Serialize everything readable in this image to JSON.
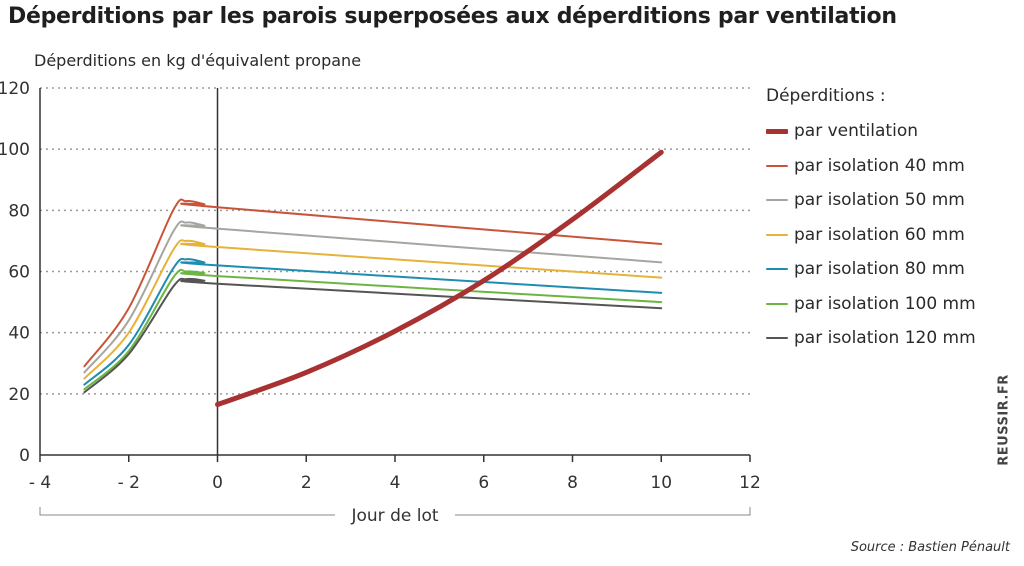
{
  "title": "Déperditions par les parois superposées aux déperditions par ventilation",
  "credit": "REUSSIR.FR",
  "source": "Source : Bastien Pénault",
  "legend_title": "Déperditions :",
  "chart_data": {
    "type": "line",
    "title": "Déperditions par les parois superposées aux déperditions par ventilation",
    "ylabel": "Déperditions en kg d'équivalent propane",
    "xlabel": "Jour de lot",
    "xlim": [
      -4,
      12
    ],
    "ylim": [
      0,
      120
    ],
    "x_ticks": [
      -4,
      -2,
      0,
      2,
      4,
      6,
      8,
      10,
      12
    ],
    "x_tick_labels": [
      "- 4",
      "- 2",
      "0",
      "2",
      "4",
      "6",
      "8",
      "10",
      "12"
    ],
    "y_ticks": [
      0,
      20,
      40,
      60,
      80,
      100,
      120
    ],
    "y_tick_labels": [
      "0",
      "20",
      "40",
      "60",
      "80",
      "100",
      "120"
    ],
    "grid": "horizontal-dotted",
    "vertical_marker_x": 0,
    "legend_position": "right",
    "series": [
      {
        "name": "par ventilation",
        "color": "#a83232",
        "width": 5,
        "points": [
          [
            0,
            16.5
          ],
          [
            2,
            27
          ],
          [
            4,
            40.5
          ],
          [
            6,
            57
          ],
          [
            8,
            77
          ],
          [
            10,
            99
          ]
        ]
      },
      {
        "name": "par isolation 40 mm",
        "color": "#c8553a",
        "width": 2,
        "points": [
          [
            -3,
            29
          ],
          [
            -2,
            48
          ],
          [
            -1,
            80
          ],
          [
            -0.7,
            83
          ],
          [
            -0.3,
            82
          ],
          [
            0,
            81
          ],
          [
            10,
            69
          ]
        ]
      },
      {
        "name": "par isolation 50 mm",
        "color": "#a6a6a0",
        "width": 2,
        "points": [
          [
            -3,
            27
          ],
          [
            -2,
            44
          ],
          [
            -1,
            73
          ],
          [
            -0.7,
            76
          ],
          [
            -0.3,
            75
          ],
          [
            0,
            74
          ],
          [
            10,
            63
          ]
        ]
      },
      {
        "name": "par isolation 60 mm",
        "color": "#e6b23a",
        "width": 2,
        "points": [
          [
            -3,
            25
          ],
          [
            -2,
            40
          ],
          [
            -1,
            67
          ],
          [
            -0.7,
            70
          ],
          [
            -0.3,
            69
          ],
          [
            0,
            68
          ],
          [
            10,
            58
          ]
        ]
      },
      {
        "name": "par isolation 80 mm",
        "color": "#1f8db0",
        "width": 2,
        "points": [
          [
            -3,
            23
          ],
          [
            -2,
            36
          ],
          [
            -1,
            61
          ],
          [
            -0.7,
            64
          ],
          [
            -0.3,
            63
          ],
          [
            0,
            62
          ],
          [
            10,
            53
          ]
        ]
      },
      {
        "name": "par isolation 100 mm",
        "color": "#6db543",
        "width": 2,
        "points": [
          [
            -3,
            21.5
          ],
          [
            -2,
            34
          ],
          [
            -1,
            58
          ],
          [
            -0.7,
            60
          ],
          [
            -0.3,
            59.5
          ],
          [
            0,
            58.5
          ],
          [
            10,
            50
          ]
        ]
      },
      {
        "name": "par isolation 120 mm",
        "color": "#555555",
        "width": 2,
        "points": [
          [
            -3,
            20.5
          ],
          [
            -2,
            33
          ],
          [
            -1,
            55
          ],
          [
            -0.7,
            57.5
          ],
          [
            -0.3,
            57
          ],
          [
            0,
            56
          ],
          [
            10,
            48
          ]
        ]
      }
    ]
  }
}
